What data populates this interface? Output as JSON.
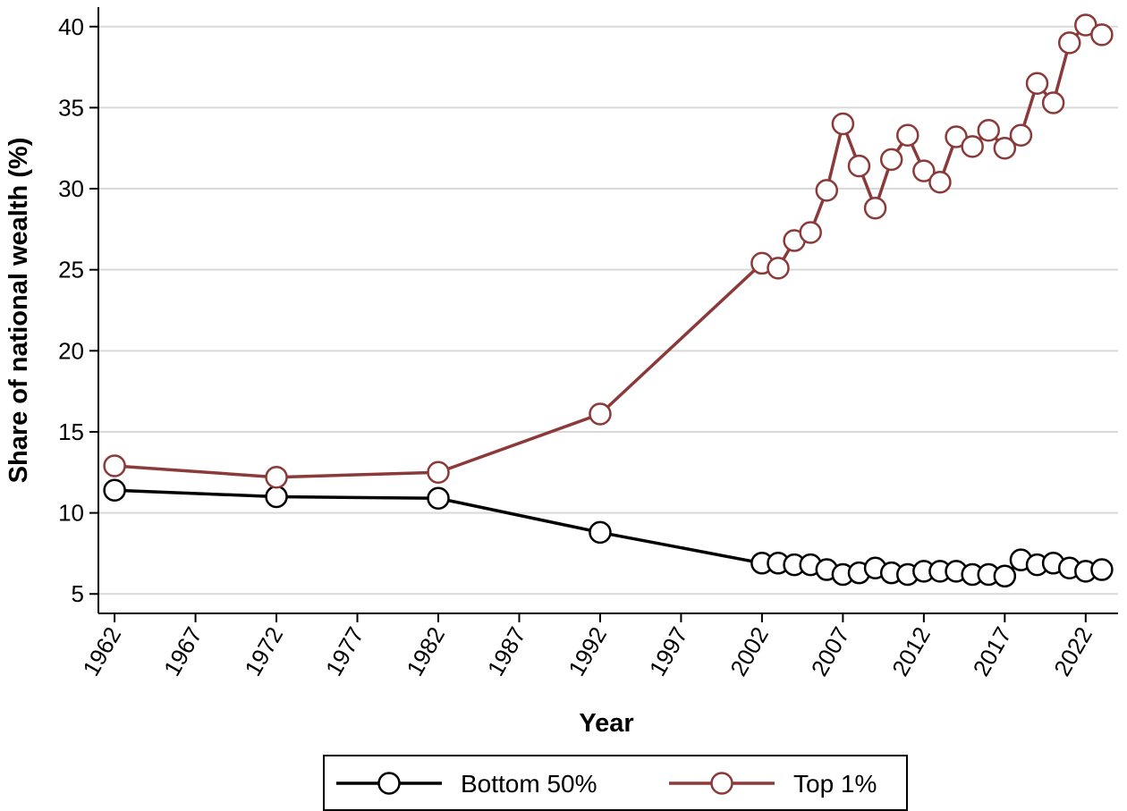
{
  "chart_data": {
    "type": "line",
    "xlabel": "Year",
    "ylabel": "Share of national wealth (%)",
    "ylim": [
      5,
      40
    ],
    "yticks": [
      5,
      10,
      15,
      20,
      25,
      30,
      35,
      40
    ],
    "xticks": [
      1962,
      1967,
      1972,
      1977,
      1982,
      1987,
      1992,
      1997,
      2002,
      2007,
      2012,
      2017,
      2022
    ],
    "grid": "horizontal",
    "legend": "bottom",
    "series": [
      {
        "name": "Bottom 50%",
        "color": "#000000",
        "marker": "hollow-circle",
        "points": [
          {
            "x": 1962,
            "y": 11.4
          },
          {
            "x": 1972,
            "y": 11.0
          },
          {
            "x": 1982,
            "y": 10.9
          },
          {
            "x": 1992,
            "y": 8.8
          },
          {
            "x": 2002,
            "y": 6.9
          },
          {
            "x": 2003,
            "y": 6.9
          },
          {
            "x": 2004,
            "y": 6.8
          },
          {
            "x": 2005,
            "y": 6.8
          },
          {
            "x": 2006,
            "y": 6.5
          },
          {
            "x": 2007,
            "y": 6.2
          },
          {
            "x": 2008,
            "y": 6.3
          },
          {
            "x": 2009,
            "y": 6.6
          },
          {
            "x": 2010,
            "y": 6.3
          },
          {
            "x": 2011,
            "y": 6.2
          },
          {
            "x": 2012,
            "y": 6.4
          },
          {
            "x": 2013,
            "y": 6.4
          },
          {
            "x": 2014,
            "y": 6.4
          },
          {
            "x": 2015,
            "y": 6.2
          },
          {
            "x": 2016,
            "y": 6.2
          },
          {
            "x": 2017,
            "y": 6.1
          },
          {
            "x": 2018,
            "y": 7.1
          },
          {
            "x": 2019,
            "y": 6.8
          },
          {
            "x": 2020,
            "y": 6.9
          },
          {
            "x": 2021,
            "y": 6.6
          },
          {
            "x": 2022,
            "y": 6.4
          },
          {
            "x": 2023,
            "y": 6.5
          }
        ]
      },
      {
        "name": "Top 1%",
        "color": "#8b3a3a",
        "marker": "hollow-circle",
        "points": [
          {
            "x": 1962,
            "y": 12.9
          },
          {
            "x": 1972,
            "y": 12.2
          },
          {
            "x": 1982,
            "y": 12.5
          },
          {
            "x": 1992,
            "y": 16.1
          },
          {
            "x": 2002,
            "y": 25.4
          },
          {
            "x": 2003,
            "y": 25.1
          },
          {
            "x": 2004,
            "y": 26.8
          },
          {
            "x": 2005,
            "y": 27.3
          },
          {
            "x": 2006,
            "y": 29.9
          },
          {
            "x": 2007,
            "y": 34.0
          },
          {
            "x": 2008,
            "y": 31.4
          },
          {
            "x": 2009,
            "y": 28.8
          },
          {
            "x": 2010,
            "y": 31.8
          },
          {
            "x": 2011,
            "y": 33.3
          },
          {
            "x": 2012,
            "y": 31.1
          },
          {
            "x": 2013,
            "y": 30.4
          },
          {
            "x": 2014,
            "y": 33.2
          },
          {
            "x": 2015,
            "y": 32.6
          },
          {
            "x": 2016,
            "y": 33.6
          },
          {
            "x": 2017,
            "y": 32.5
          },
          {
            "x": 2018,
            "y": 33.3
          },
          {
            "x": 2019,
            "y": 36.5
          },
          {
            "x": 2020,
            "y": 35.3
          },
          {
            "x": 2021,
            "y": 39.0
          },
          {
            "x": 2022,
            "y": 40.1
          },
          {
            "x": 2023,
            "y": 39.5
          }
        ]
      }
    ]
  }
}
